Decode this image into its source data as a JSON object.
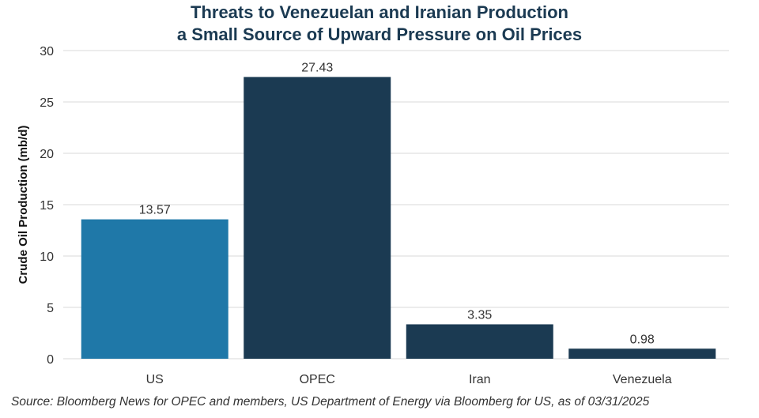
{
  "chart_data": {
    "type": "bar",
    "title_lines": [
      "Threats to Venezuelan and Iranian Production",
      "a Small Source of Upward Pressure on Oil Prices"
    ],
    "categories": [
      "US",
      "OPEC",
      "Iran",
      "Venezuela"
    ],
    "values": [
      13.57,
      27.43,
      3.35,
      0.98
    ],
    "value_labels": [
      "13.57",
      "27.43",
      "3.35",
      "0.98"
    ],
    "bar_colors": [
      "#1f78a8",
      "#1b3a52",
      "#1b3a52",
      "#1b3a52"
    ],
    "xlabel": "",
    "ylabel": "Crude Oil Production (mb/d)",
    "ylim": [
      0,
      30
    ],
    "yticks": [
      0,
      5,
      10,
      15,
      20,
      25,
      30
    ],
    "grid": true,
    "legend": "none"
  },
  "source": "Source: Bloomberg News for OPEC and members, US Department of Energy via Bloomberg for US, as of 03/31/2025",
  "colors": {
    "title": "#1b3a52",
    "grid": "#d9d9d9",
    "axis_text": "#333333"
  }
}
